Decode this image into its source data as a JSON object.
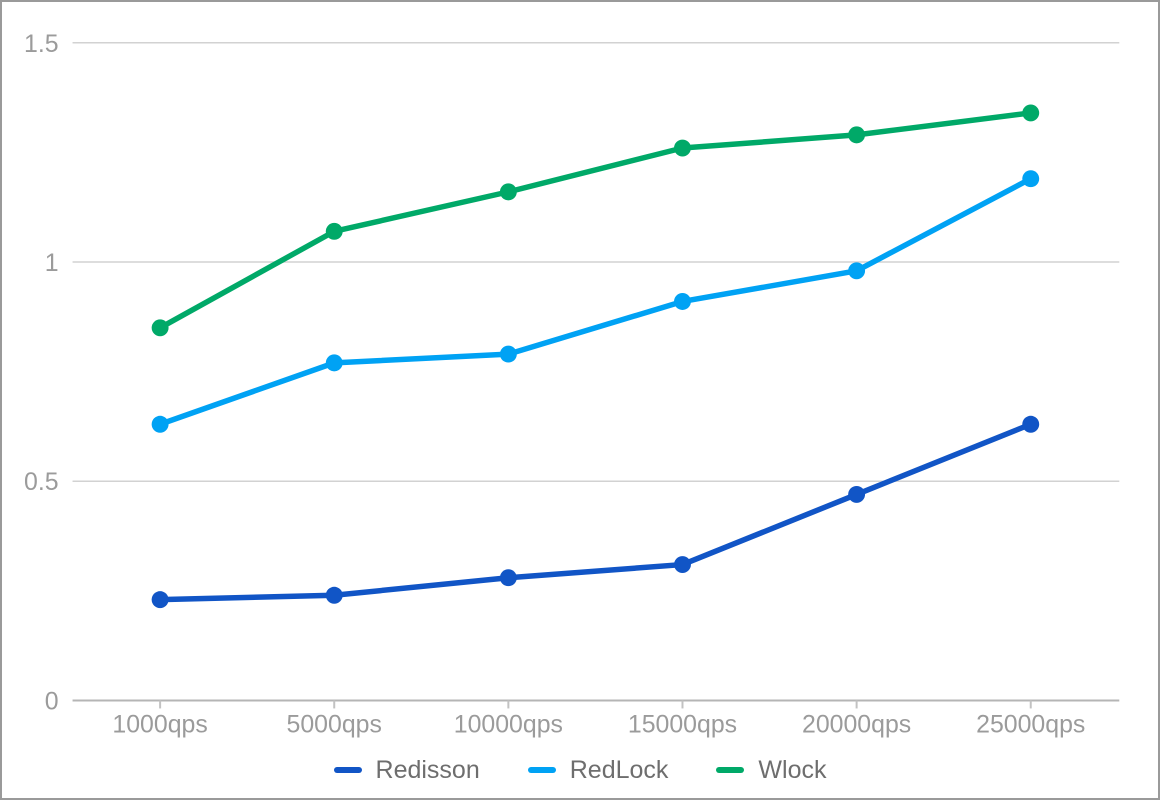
{
  "chart_data": {
    "type": "line",
    "categories": [
      "1000qps",
      "5000qps",
      "10000qps",
      "15000qps",
      "20000qps",
      "25000qps"
    ],
    "series": [
      {
        "name": "Redisson",
        "color": "#1155c6",
        "values": [
          0.23,
          0.24,
          0.28,
          0.31,
          0.47,
          0.63
        ]
      },
      {
        "name": "RedLock",
        "color": "#00a2f4",
        "values": [
          0.63,
          0.77,
          0.79,
          0.91,
          0.98,
          1.19
        ]
      },
      {
        "name": "Wlock",
        "color": "#00a968",
        "values": [
          0.85,
          1.07,
          1.16,
          1.26,
          1.29,
          1.34
        ]
      }
    ],
    "yticks": [
      {
        "value": 0,
        "label": "0"
      },
      {
        "value": 0.5,
        "label": "0.5"
      },
      {
        "value": 1,
        "label": "1"
      },
      {
        "value": 1.5,
        "label": "1.5"
      }
    ],
    "ylim": [
      0,
      1.5
    ],
    "grid": true,
    "legend_position": "bottom",
    "marker": "circle"
  },
  "colors": {
    "background": "#ffffff",
    "frame_border": "#9a9a9a",
    "gridline": "#d2d2d2",
    "axis_line": "#b5b5b5",
    "tick_mark": "#c2c2c2",
    "axis_label_text": "#9b9b9b",
    "legend_text": "#6e6e6e"
  }
}
